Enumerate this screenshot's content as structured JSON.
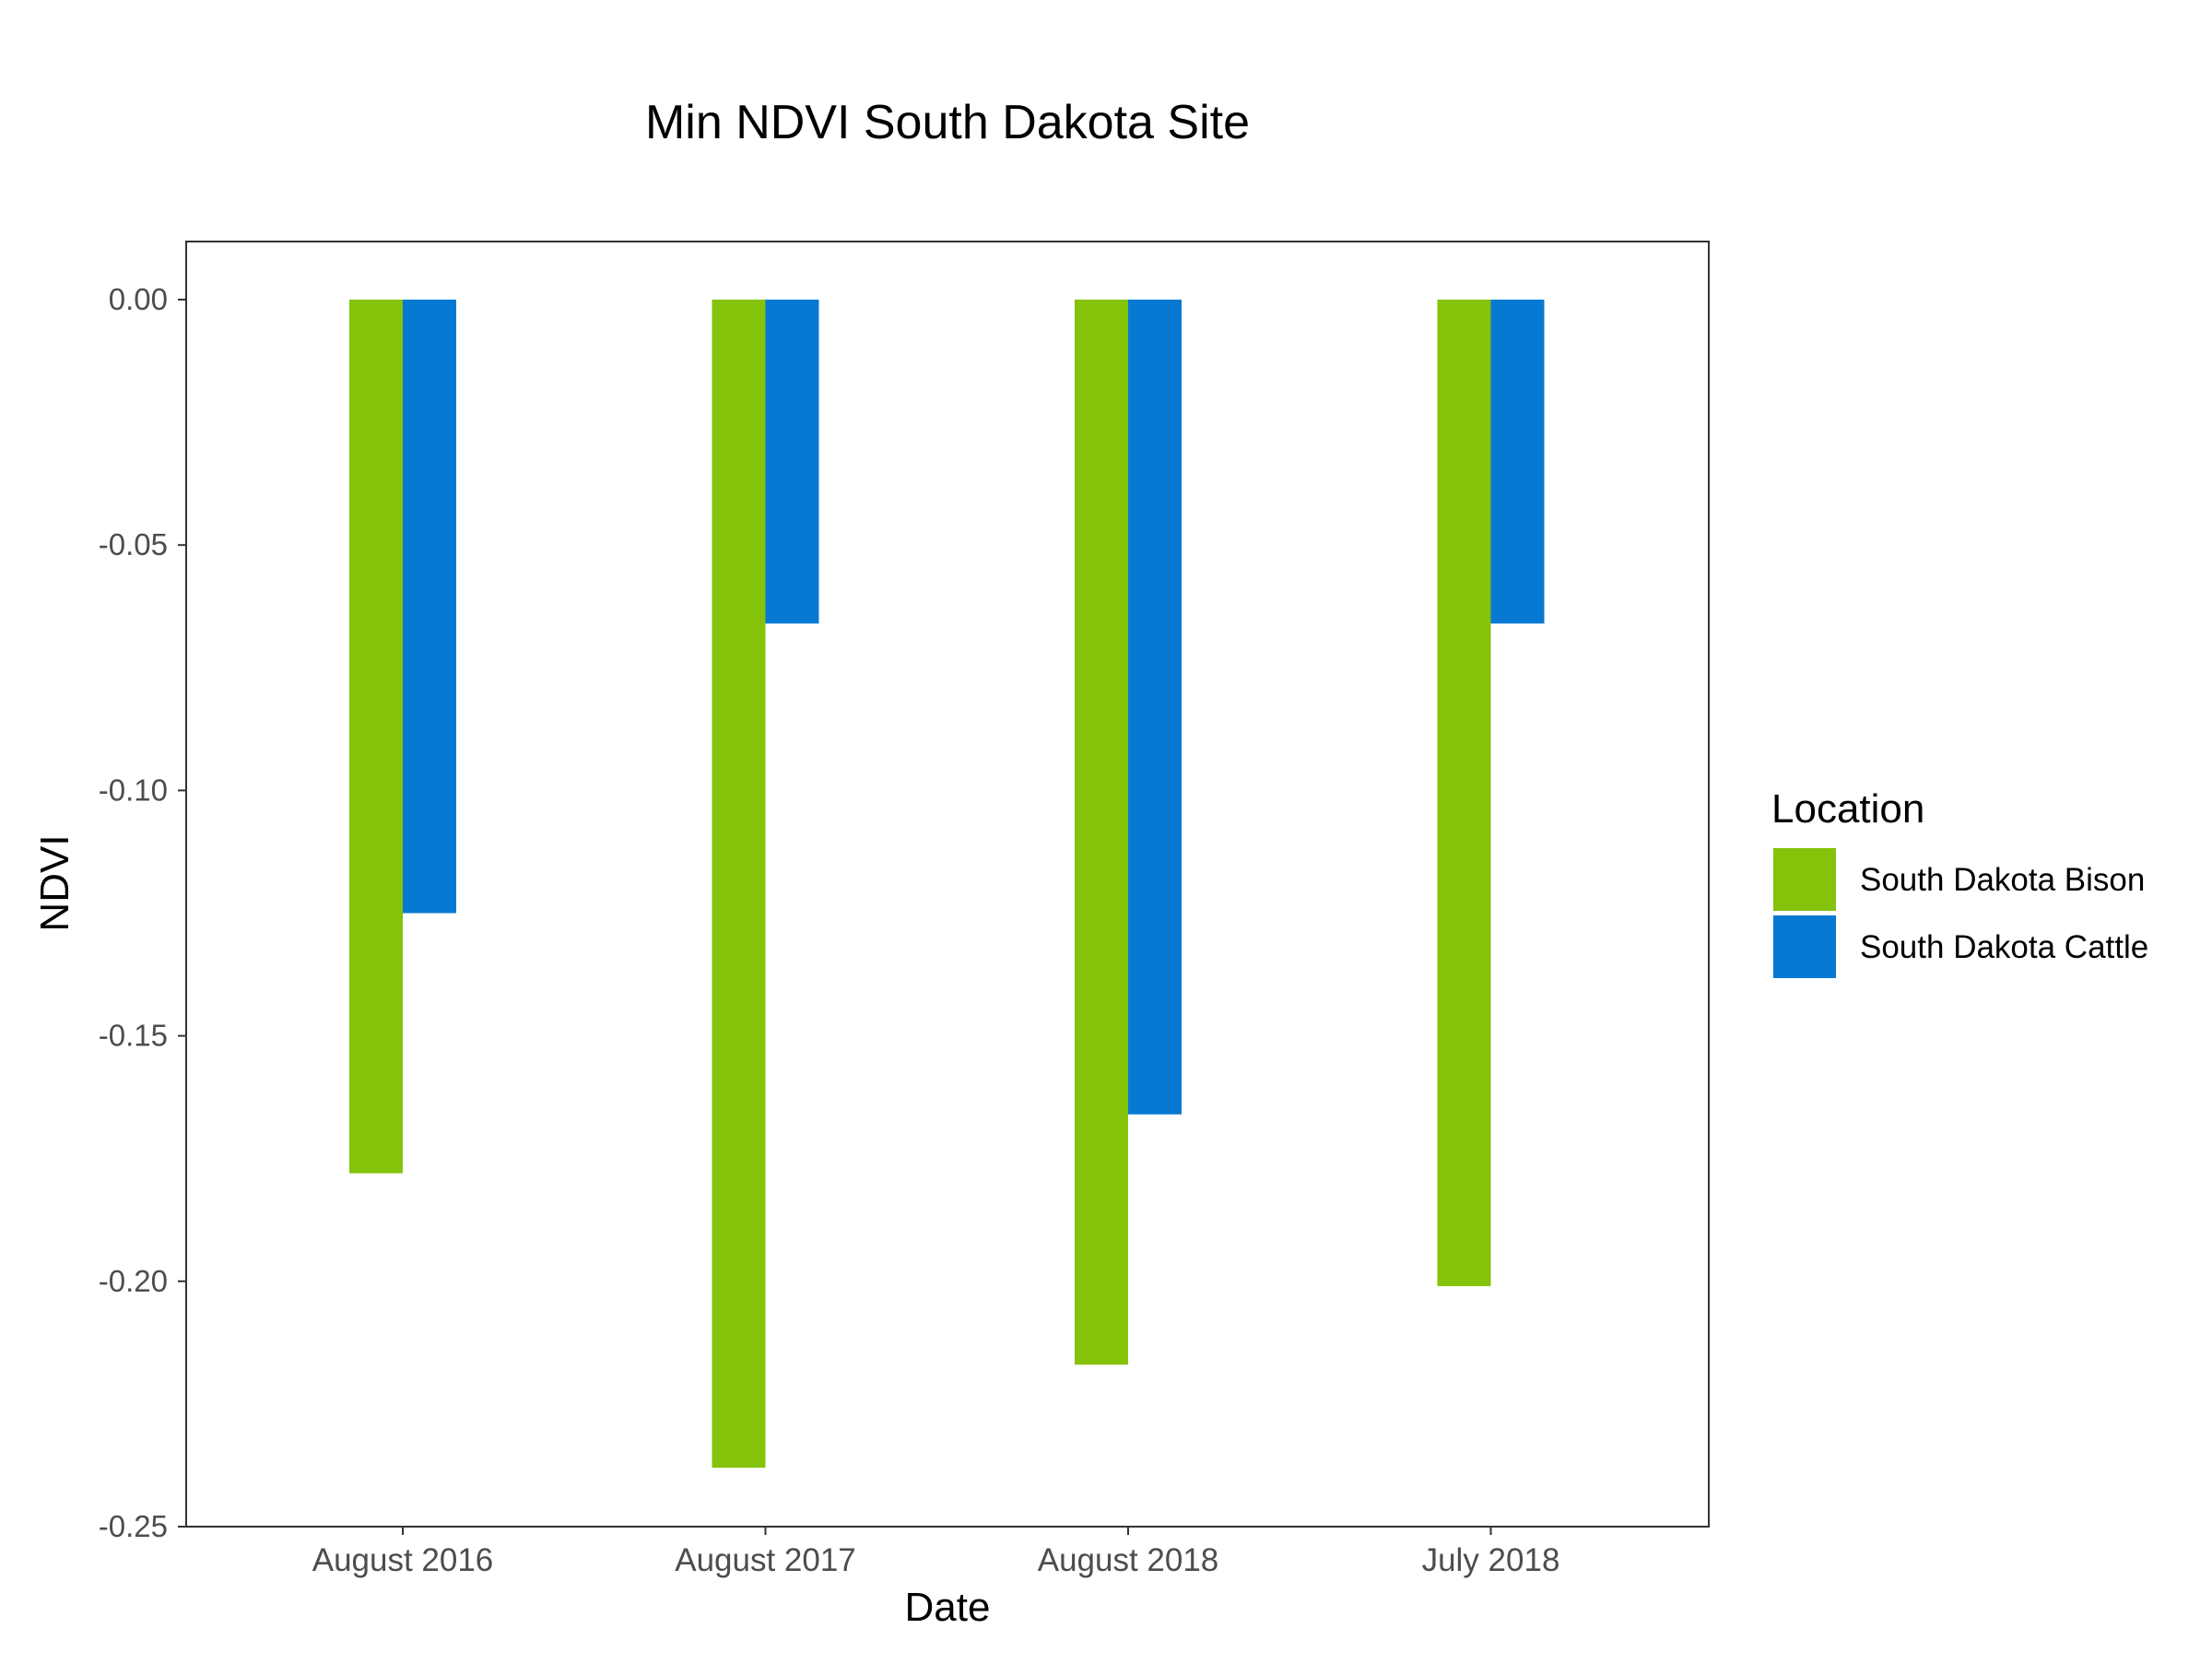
{
  "chart_data": {
    "type": "bar",
    "title": "Min NDVI South Dakota Site",
    "xlabel": "Date",
    "ylabel": "NDVI",
    "categories": [
      "August 2016",
      "August 2017",
      "August 2018",
      "July 2018"
    ],
    "ylim": [
      -0.25,
      0.0
    ],
    "yticks": [
      0.0,
      -0.05,
      -0.1,
      -0.15,
      -0.2,
      -0.25
    ],
    "ytick_labels": [
      "0.00",
      "-0.05",
      "-0.10",
      "-0.15",
      "-0.20",
      "-0.25"
    ],
    "grid": false,
    "legend": {
      "title": "Location",
      "placement": "right"
    },
    "series": [
      {
        "name": "South Dakota Bison",
        "color": "#85C20A",
        "values": [
          -0.178,
          -0.238,
          -0.217,
          -0.201
        ]
      },
      {
        "name": "South Dakota Cattle",
        "color": "#0779D2",
        "values": [
          -0.125,
          -0.066,
          -0.166,
          -0.066
        ]
      }
    ]
  }
}
